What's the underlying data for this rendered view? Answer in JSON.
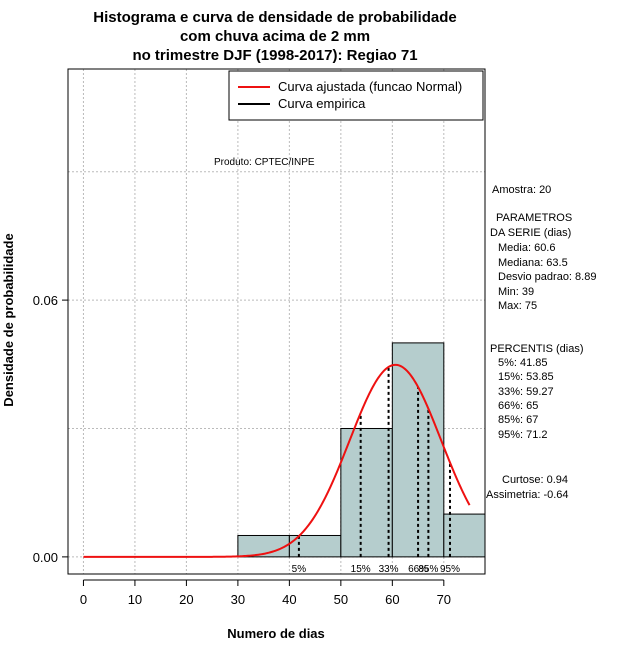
{
  "chart_data": {
    "type": "bar",
    "title_lines": [
      "Histograma e curva de densidade de probabilidade",
      "com chuva acima de 2 mm",
      "no trimestre DJF (1998-2017): Regiao 71"
    ],
    "xlabel": "Numero de dias",
    "ylabel": "Densidade de probabilidade",
    "xlim": [
      -3,
      78
    ],
    "ylim": [
      -0.004,
      0.114
    ],
    "x_ticks": [
      "0",
      "10",
      "20",
      "30",
      "40",
      "50",
      "60",
      "70"
    ],
    "y_ticks": [
      "0.00",
      "0.06"
    ],
    "grid": true,
    "bins": [
      {
        "x0": 30,
        "x1": 40,
        "density": 0.005
      },
      {
        "x0": 40,
        "x1": 50,
        "density": 0.005
      },
      {
        "x0": 50,
        "x1": 60,
        "density": 0.03
      },
      {
        "x0": 60,
        "x1": 70,
        "density": 0.05
      },
      {
        "x0": 70,
        "x1": 78,
        "density": 0.01
      }
    ],
    "fitted_curve": {
      "name": "Curva ajustada (funcao Normal)",
      "mean": 60.6,
      "sd": 8.89,
      "x_from": 0,
      "x_to": 75,
      "color": "#ee1111"
    },
    "empirical_curve": {
      "name": "Curva empirica",
      "color": "#000000"
    },
    "percentile_lines": [
      {
        "label": "5%",
        "x": 41.85
      },
      {
        "label": "15%",
        "x": 53.85
      },
      {
        "label": "33%",
        "x": 59.27
      },
      {
        "label": "66%",
        "x": 65
      },
      {
        "label": "85%",
        "x": 67
      },
      {
        "label": "95%",
        "x": 71.2
      }
    ],
    "legend_position": "top-right",
    "bar_color": "#b5cdcd"
  },
  "annotations": {
    "produto": "Produto: CPTEC/INPE",
    "amostra": "Amostra: 20",
    "parametros_title_1": "PARAMETROS",
    "parametros_title_2": "DA SERIE (dias)",
    "parametros": [
      "Media: 60.6",
      "Mediana: 63.5",
      "Desvio padrao: 8.89",
      "Min: 39",
      "Max: 75"
    ],
    "percentis_title": "PERCENTIS (dias)",
    "percentis": [
      "5%: 41.85",
      "15%: 53.85",
      "33%: 59.27",
      "66%: 65",
      "85%: 67",
      "95%: 71.2"
    ],
    "curtose": "Curtose: 0.94",
    "assimetria": "Assimetria: -0.64"
  }
}
